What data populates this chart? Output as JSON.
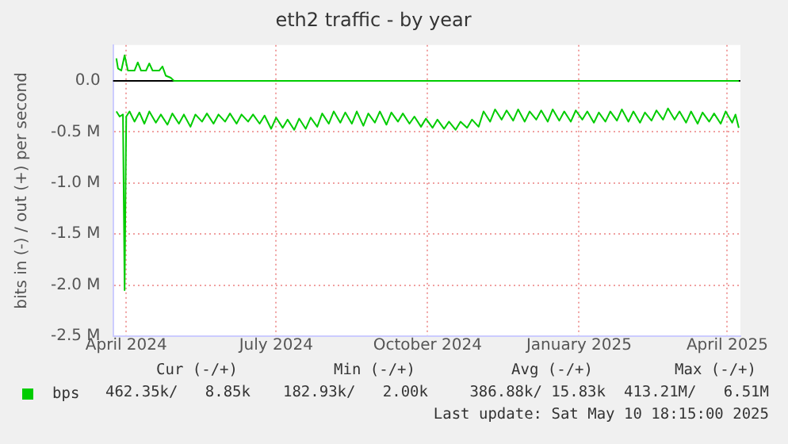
{
  "chart_data": {
    "type": "line",
    "title": "eth2 traffic - by year",
    "ylabel": "bits in (-) / out (+) per second",
    "xlim": [
      "2024-03-24",
      "2025-04-09"
    ],
    "xticks": [
      {
        "value": "2024-04-01",
        "label": "April 2024"
      },
      {
        "value": "2024-07-01",
        "label": "July 2024"
      },
      {
        "value": "2024-10-01",
        "label": "October 2024"
      },
      {
        "value": "2025-01-01",
        "label": "January 2025"
      },
      {
        "value": "2025-04-01",
        "label": "April 2025"
      }
    ],
    "ylim": [
      -2.5,
      0.35
    ],
    "yticks": [
      {
        "value": -2.5,
        "label": "-2.5 M"
      },
      {
        "value": -2,
        "label": "-2.0 M"
      },
      {
        "value": -1.5,
        "label": "-1.5 M"
      },
      {
        "value": -1,
        "label": "-1.0 M"
      },
      {
        "value": -0.5,
        "label": "-0.5 M"
      },
      {
        "value": 0,
        "label": "0.0"
      }
    ],
    "grid": true,
    "legend": "bottom left",
    "marker": "none",
    "line_style": "solid",
    "ref_lines": [
      {
        "axis": "y",
        "value": 0,
        "color": "#000000"
      }
    ],
    "series": [
      {
        "name": "bps",
        "color": "#00cc00",
        "x": [
          "2024-03-26",
          "2024-03-27",
          "2024-03-29",
          "2024-03-31",
          "2024-04-02",
          "2024-04-06",
          "2024-04-08",
          "2024-04-10",
          "2024-04-13",
          "2024-04-15",
          "2024-04-17",
          "2024-04-21",
          "2024-04-23",
          "2024-04-25",
          "2024-04-28",
          "2024-04-30",
          "2025-04-08"
        ],
        "values": [
          0.22,
          0.12,
          0.1,
          0.25,
          0.1,
          0.1,
          0.18,
          0.1,
          0.1,
          0.17,
          0.1,
          0.1,
          0.14,
          0.05,
          0.03,
          0,
          0
        ]
      },
      {
        "color": "#00cc00",
        "x": [
          "2024-03-26",
          "2024-03-28",
          "2024-03-30",
          "2024-03-31",
          "2024-04-01",
          "2024-04-03",
          "2024-04-06",
          "2024-04-09",
          "2024-04-12",
          "2024-04-15",
          "2024-04-19",
          "2024-04-22",
          "2024-04-26",
          "2024-04-29",
          "2024-05-03",
          "2024-05-06",
          "2024-05-10",
          "2024-05-13",
          "2024-05-17",
          "2024-05-20",
          "2024-05-24",
          "2024-05-27",
          "2024-05-31",
          "2024-06-03",
          "2024-06-07",
          "2024-06-10",
          "2024-06-14",
          "2024-06-17",
          "2024-06-21",
          "2024-06-24",
          "2024-06-28",
          "2024-07-01",
          "2024-07-05",
          "2024-07-08",
          "2024-07-12",
          "2024-07-15",
          "2024-07-19",
          "2024-07-22",
          "2024-07-26",
          "2024-07-29",
          "2024-08-02",
          "2024-08-05",
          "2024-08-09",
          "2024-08-12",
          "2024-08-16",
          "2024-08-19",
          "2024-08-23",
          "2024-08-26",
          "2024-08-30",
          "2024-09-02",
          "2024-09-06",
          "2024-09-09",
          "2024-09-13",
          "2024-09-16",
          "2024-09-20",
          "2024-09-23",
          "2024-09-27",
          "2024-09-30",
          "2024-10-04",
          "2024-10-07",
          "2024-10-11",
          "2024-10-14",
          "2024-10-18",
          "2024-10-21",
          "2024-10-25",
          "2024-10-28",
          "2024-11-01",
          "2024-11-04",
          "2024-11-08",
          "2024-11-11",
          "2024-11-15",
          "2024-11-18",
          "2024-11-22",
          "2024-11-25",
          "2024-11-29",
          "2024-12-02",
          "2024-12-06",
          "2024-12-09",
          "2024-12-13",
          "2024-12-16",
          "2024-12-20",
          "2024-12-23",
          "2024-12-27",
          "2024-12-30",
          "2025-01-03",
          "2025-01-06",
          "2025-01-10",
          "2025-01-13",
          "2025-01-17",
          "2025-01-20",
          "2025-01-24",
          "2025-01-27",
          "2025-01-31",
          "2025-02-03",
          "2025-02-07",
          "2025-02-10",
          "2025-02-14",
          "2025-02-17",
          "2025-02-21",
          "2025-02-24",
          "2025-02-28",
          "2025-03-03",
          "2025-03-07",
          "2025-03-10",
          "2025-03-14",
          "2025-03-17",
          "2025-03-21",
          "2025-03-24",
          "2025-03-28",
          "2025-03-31",
          "2025-04-04",
          "2025-04-06",
          "2025-04-08"
        ],
        "values": [
          -0.3,
          -0.35,
          -0.33,
          -2.05,
          -0.35,
          -0.3,
          -0.4,
          -0.31,
          -0.42,
          -0.3,
          -0.41,
          -0.33,
          -0.43,
          -0.32,
          -0.42,
          -0.33,
          -0.45,
          -0.33,
          -0.4,
          -0.32,
          -0.42,
          -0.33,
          -0.4,
          -0.32,
          -0.42,
          -0.33,
          -0.4,
          -0.33,
          -0.42,
          -0.34,
          -0.47,
          -0.36,
          -0.46,
          -0.38,
          -0.48,
          -0.37,
          -0.47,
          -0.36,
          -0.45,
          -0.32,
          -0.42,
          -0.3,
          -0.41,
          -0.31,
          -0.42,
          -0.3,
          -0.44,
          -0.32,
          -0.41,
          -0.3,
          -0.43,
          -0.31,
          -0.4,
          -0.32,
          -0.42,
          -0.35,
          -0.45,
          -0.37,
          -0.46,
          -0.38,
          -0.47,
          -0.4,
          -0.48,
          -0.4,
          -0.46,
          -0.38,
          -0.45,
          -0.3,
          -0.4,
          -0.28,
          -0.38,
          -0.29,
          -0.39,
          -0.28,
          -0.4,
          -0.3,
          -0.38,
          -0.29,
          -0.4,
          -0.28,
          -0.39,
          -0.3,
          -0.4,
          -0.29,
          -0.38,
          -0.3,
          -0.41,
          -0.31,
          -0.4,
          -0.3,
          -0.39,
          -0.28,
          -0.4,
          -0.3,
          -0.41,
          -0.31,
          -0.39,
          -0.29,
          -0.38,
          -0.27,
          -0.38,
          -0.3,
          -0.41,
          -0.3,
          -0.42,
          -0.31,
          -0.4,
          -0.32,
          -0.42,
          -0.3,
          -0.41,
          -0.33,
          -0.46
        ]
      }
    ],
    "annotations": [
      "Cur (-/+)",
      "Min (-/+)",
      "Avg (-/+)",
      "Max (-/+)",
      "462.35k/   8.85k",
      "182.93k/   2.00k",
      "386.88k/ 15.83k",
      "413.21M/   6.51M",
      "Last update: Sat May 10 18:15:00 2025"
    ]
  }
}
